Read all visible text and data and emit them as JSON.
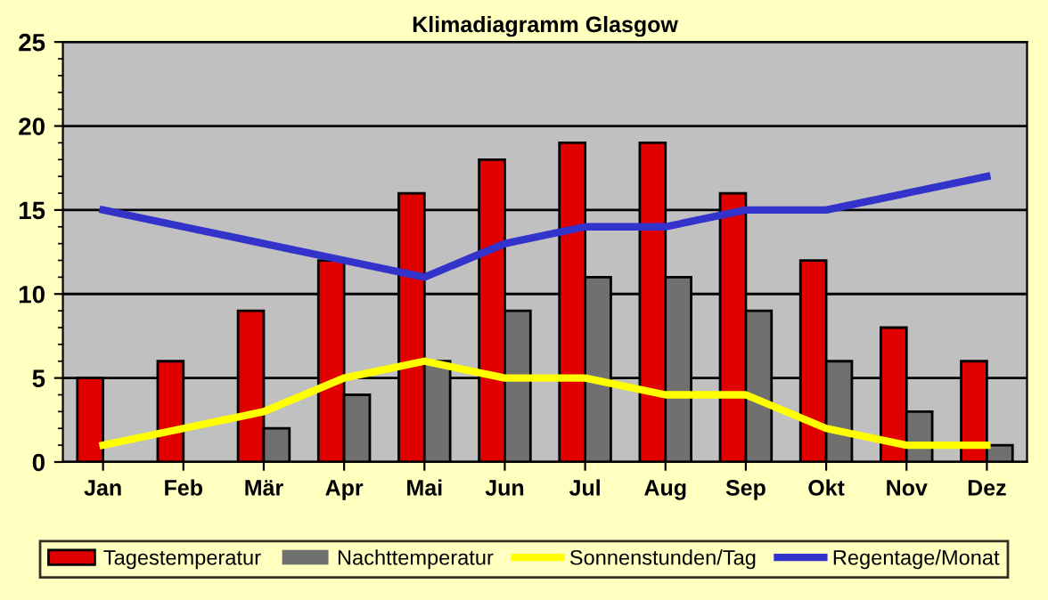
{
  "chart_data": {
    "type": "bar",
    "title": "Klimadiagramm Glasgow",
    "categories": [
      "Jan",
      "Feb",
      "Mär",
      "Apr",
      "Mai",
      "Jun",
      "Jul",
      "Aug",
      "Sep",
      "Okt",
      "Nov",
      "Dez"
    ],
    "series": [
      {
        "name": "Tagestemperatur",
        "color": "#e00000",
        "values": [
          5,
          6,
          9,
          12,
          16,
          18,
          19,
          19,
          16,
          12,
          8,
          6
        ]
      },
      {
        "name": "Nachttemperatur",
        "color": "#707070",
        "values": [
          0,
          0,
          2,
          4,
          6,
          9,
          11,
          11,
          9,
          6,
          3,
          1
        ]
      },
      {
        "name": "Sonnenstunden/Tag",
        "type": "line",
        "color": "#ffff00",
        "values": [
          1,
          2,
          3,
          5,
          6,
          5,
          5,
          4,
          4,
          2,
          1,
          1
        ]
      },
      {
        "name": "Regentage/Monat",
        "type": "line",
        "color": "#3333cc",
        "values": [
          15,
          14,
          13,
          12,
          11,
          13,
          14,
          14,
          15,
          15,
          16,
          17
        ]
      }
    ],
    "ylim": [
      0,
      25
    ],
    "yticks": [
      0,
      5,
      10,
      15,
      20,
      25
    ],
    "grid": "y",
    "legend": "bottom"
  }
}
